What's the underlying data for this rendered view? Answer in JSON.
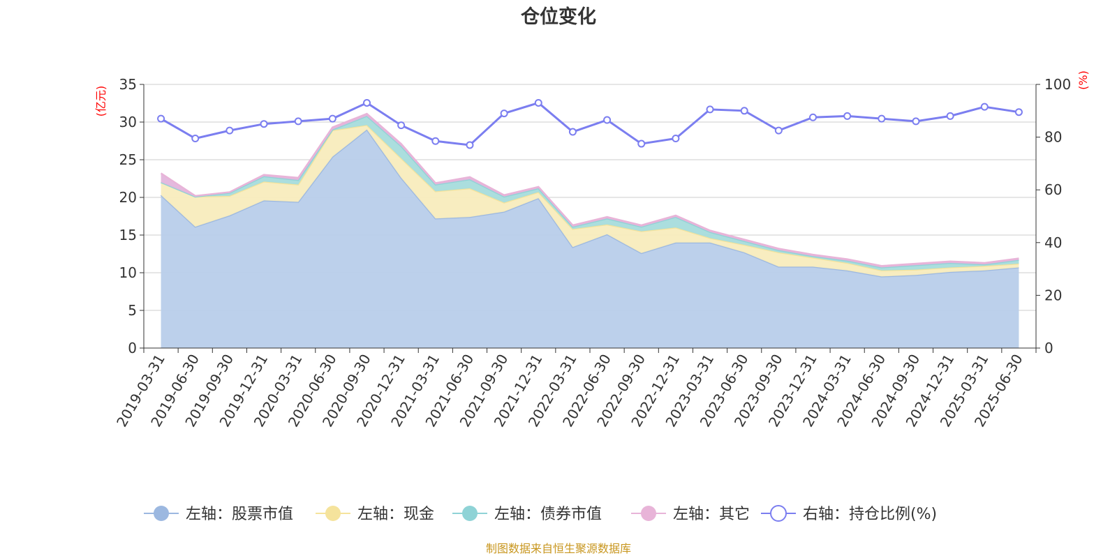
{
  "chart_data": {
    "type": "area",
    "title": "仓位变化",
    "left_unit": "(亿元)",
    "right_unit": "(%)",
    "ylim_left": [
      0,
      35
    ],
    "yticks_left": [
      "0",
      "5",
      "10",
      "15",
      "20",
      "25",
      "30",
      "35"
    ],
    "ylim_right": [
      0,
      100
    ],
    "yticks_right": [
      "0",
      "20",
      "40",
      "60",
      "80",
      "100"
    ],
    "grid": true,
    "legend_position": "bottom",
    "categories": [
      "2019-03-31",
      "2019-06-30",
      "2019-09-30",
      "2019-12-31",
      "2020-03-31",
      "2020-06-30",
      "2020-09-30",
      "2020-12-31",
      "2021-03-31",
      "2021-06-30",
      "2021-09-30",
      "2021-12-31",
      "2022-03-31",
      "2022-06-30",
      "2022-09-30",
      "2022-12-31",
      "2023-03-31",
      "2023-06-30",
      "2023-09-30",
      "2023-12-31",
      "2024-03-31",
      "2024-06-30",
      "2024-09-30",
      "2024-12-31",
      "2025-03-31",
      "2025-06-30"
    ],
    "series": [
      {
        "name": "左轴：股票市值",
        "axis": "left",
        "stack": true,
        "color": "#9cb8e0",
        "fill": "#b8cdea",
        "values": [
          20.3,
          16.1,
          17.6,
          19.6,
          19.4,
          25.4,
          29.0,
          22.6,
          17.2,
          17.4,
          18.1,
          19.9,
          13.4,
          15.1,
          12.6,
          14.0,
          14.0,
          12.7,
          10.8,
          10.8,
          10.3,
          9.5,
          9.7,
          10.1,
          10.3,
          10.7
        ]
      },
      {
        "name": "左轴：现金",
        "axis": "left",
        "stack": true,
        "color": "#f5e39c",
        "fill": "#f8ecbd",
        "values": [
          1.7,
          4.0,
          2.6,
          2.5,
          2.3,
          3.5,
          0.6,
          2.6,
          3.6,
          3.8,
          1.2,
          0.8,
          2.4,
          1.3,
          2.9,
          2.0,
          0.6,
          1.0,
          1.9,
          1.2,
          1.0,
          0.8,
          0.7,
          0.6,
          0.6,
          0.5
        ]
      },
      {
        "name": "左轴：债券市值",
        "axis": "left",
        "stack": true,
        "color": "#8fd3d6",
        "fill": "#a7dcdc",
        "values": [
          0.0,
          0.0,
          0.4,
          0.7,
          0.6,
          0.1,
          1.2,
          1.6,
          0.9,
          1.2,
          0.8,
          0.5,
          0.3,
          0.8,
          0.6,
          1.4,
          0.8,
          0.5,
          0.3,
          0.2,
          0.3,
          0.4,
          0.6,
          0.6,
          0.2,
          0.5
        ]
      },
      {
        "name": "左轴：其它",
        "axis": "left",
        "stack": true,
        "color": "#e8b4d8",
        "fill": "#e3b5dc",
        "values": [
          1.2,
          0.1,
          0.1,
          0.2,
          0.3,
          0.3,
          0.3,
          0.3,
          0.2,
          0.3,
          0.2,
          0.2,
          0.2,
          0.2,
          0.2,
          0.2,
          0.2,
          0.2,
          0.2,
          0.2,
          0.2,
          0.2,
          0.2,
          0.2,
          0.2,
          0.2
        ]
      },
      {
        "name": "右轴：持仓比例(%)",
        "axis": "right",
        "stack": false,
        "color": "#7b7ef0",
        "values": [
          87.0,
          79.5,
          82.5,
          85.0,
          86.0,
          87.0,
          93.0,
          84.5,
          78.5,
          77.0,
          89.0,
          93.0,
          82.0,
          86.5,
          77.5,
          79.5,
          90.5,
          90.0,
          82.5,
          87.5,
          88.0,
          87.0,
          86.0,
          88.0,
          91.5,
          89.5
        ]
      }
    ]
  },
  "footer": "制图数据来自恒生聚源数据库"
}
